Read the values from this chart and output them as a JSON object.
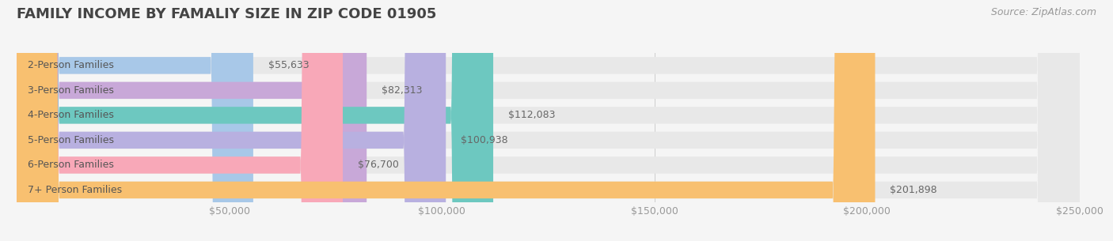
{
  "title": "FAMILY INCOME BY FAMALIY SIZE IN ZIP CODE 01905",
  "source": "Source: ZipAtlas.com",
  "categories": [
    "2-Person Families",
    "3-Person Families",
    "4-Person Families",
    "5-Person Families",
    "6-Person Families",
    "7+ Person Families"
  ],
  "values": [
    55633,
    82313,
    112083,
    100938,
    76700,
    201898
  ],
  "bar_colors": [
    "#a8c8e8",
    "#c8a8d8",
    "#6dc8c0",
    "#b8b0e0",
    "#f8a8b8",
    "#f8c070"
  ],
  "value_labels": [
    "$55,633",
    "$82,313",
    "$112,083",
    "$100,938",
    "$76,700",
    "$201,898"
  ],
  "xlim": [
    0,
    250000
  ],
  "xticks": [
    0,
    50000,
    100000,
    150000,
    200000,
    250000
  ],
  "xtick_labels": [
    "",
    "$50,000",
    "$100,000",
    "$150,000",
    "$200,000",
    "$250,000"
  ],
  "background_color": "#f5f5f5",
  "bar_background_color": "#e8e8e8",
  "title_fontsize": 13,
  "source_fontsize": 9,
  "label_fontsize": 9,
  "value_fontsize": 9,
  "tick_fontsize": 9
}
